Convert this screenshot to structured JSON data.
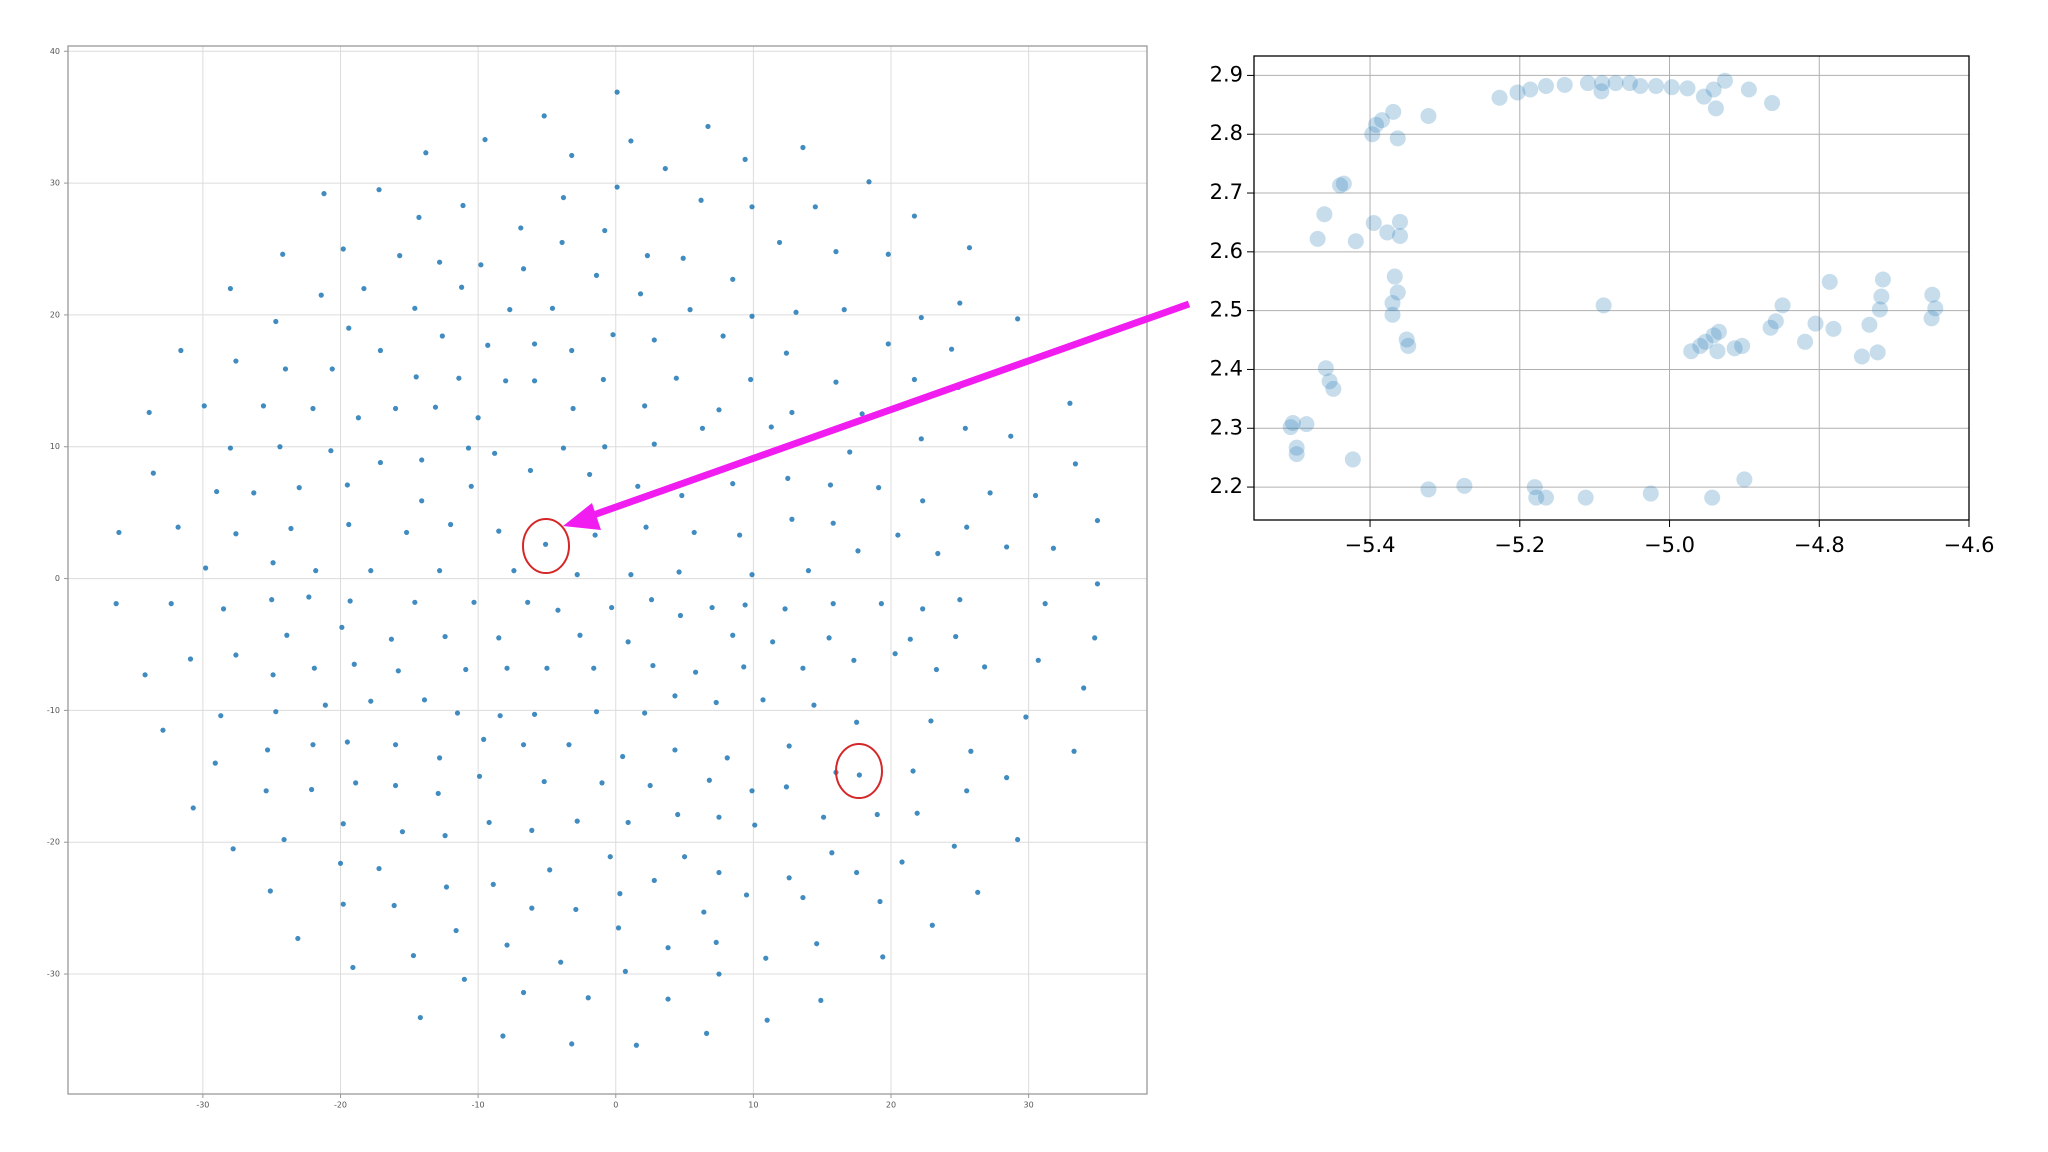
{
  "chart_data": [
    {
      "type": "scatter",
      "color": "#1f77b4",
      "alpha": 0.85,
      "grid": true,
      "xlim": [
        -39.8,
        38.6
      ],
      "ylim": [
        -39.1,
        40.4
      ],
      "xticks": [
        -30,
        -20,
        -10,
        0,
        10,
        20,
        30
      ],
      "yticks": [
        -30,
        -20,
        -10,
        0,
        10,
        20,
        30,
        40
      ],
      "x": [
        0.1,
        -5.2,
        6.7,
        -9.5,
        1.1,
        -13.8,
        -3.2,
        13.6,
        9.4,
        3.6,
        18.4,
        -21.2,
        -17.2,
        -11.1,
        0.1,
        9.9,
        6.2,
        -3.8,
        21.7,
        -14.3,
        14.5,
        -6.9,
        -0.8,
        -24.2,
        -19.8,
        -3.9,
        11.9,
        25.7,
        -15.7,
        2.3,
        4.9,
        16.0,
        19.8,
        -12.8,
        -9.8,
        -6.7,
        -28.0,
        -18.3,
        -1.4,
        8.5,
        -21.4,
        -11.2,
        1.8,
        25.0,
        -24.7,
        -14.6,
        -7.7,
        -4.6,
        5.4,
        9.9,
        13.1,
        16.6,
        22.2,
        29.2,
        -19.4,
        -12.6,
        -0.2,
        7.8,
        -31.6,
        -17.1,
        -9.3,
        -5.9,
        -3.2,
        2.8,
        12.4,
        19.8,
        -27.6,
        24.4,
        -20.6,
        -24.0,
        -14.5,
        -11.4,
        -8.0,
        -5.9,
        -0.9,
        4.4,
        9.8,
        16.0,
        21.7,
        24.9,
        33.0,
        -33.9,
        -29.9,
        -25.6,
        -22.0,
        -18.7,
        -16.0,
        -13.1,
        -10.0,
        -3.1,
        2.1,
        7.5,
        12.8,
        17.9,
        28.7,
        25.4,
        -33.6,
        -28.0,
        -24.4,
        -20.7,
        -17.1,
        -14.1,
        -10.7,
        -8.8,
        -3.8,
        -0.8,
        2.8,
        6.3,
        11.3,
        17.0,
        22.2,
        33.4,
        -29.0,
        -26.3,
        -23.0,
        -19.5,
        -14.1,
        -10.5,
        -6.2,
        -1.9,
        1.6,
        4.8,
        8.5,
        12.5,
        15.6,
        19.1,
        22.3,
        27.2,
        30.5,
        -36.1,
        -31.8,
        -27.6,
        -23.6,
        -19.4,
        -15.2,
        -12.0,
        -8.5,
        -5.1,
        -1.5,
        2.2,
        5.7,
        9.0,
        12.8,
        15.8,
        20.5,
        25.5,
        28.4,
        31.8,
        35.0,
        -29.8,
        -24.9,
        -21.8,
        -17.8,
        -12.8,
        -7.4,
        -2.8,
        1.1,
        4.6,
        9.9,
        14.0,
        17.6,
        23.4,
        35.0,
        -36.3,
        -32.3,
        -28.5,
        -25.0,
        -22.3,
        -19.3,
        -14.6,
        -10.3,
        -6.4,
        -4.2,
        -0.3,
        2.6,
        4.7,
        7.0,
        9.4,
        12.3,
        15.8,
        19.3,
        22.3,
        25.0,
        31.2,
        34.8,
        -23.9,
        -19.9,
        -16.3,
        -12.4,
        -8.5,
        -2.6,
        0.9,
        8.5,
        11.4,
        15.5,
        21.4,
        24.7,
        -34.2,
        -30.9,
        -27.6,
        -24.9,
        -21.9,
        -19.0,
        -15.8,
        -10.9,
        -7.9,
        -5.0,
        -1.6,
        2.7,
        5.8,
        9.3,
        13.6,
        17.3,
        20.3,
        23.3,
        26.8,
        30.7,
        34.0,
        -32.9,
        -28.7,
        -24.7,
        -21.1,
        -17.8,
        -13.9,
        -11.5,
        -8.4,
        -5.9,
        -1.4,
        2.1,
        4.3,
        7.3,
        10.7,
        14.4,
        17.5,
        22.9,
        29.8,
        -30.7,
        -29.1,
        -25.3,
        -22.0,
        -19.5,
        -16.0,
        -12.8,
        -9.6,
        -6.7,
        -3.4,
        0.5,
        4.3,
        8.1,
        12.6,
        17.7,
        21.6,
        25.8,
        33.3,
        -25.4,
        -22.1,
        -18.9,
        -16.0,
        -12.9,
        -9.9,
        -5.2,
        -1.0,
        2.5,
        6.8,
        9.9,
        12.4,
        16.0,
        25.5,
        28.4,
        -27.8,
        -24.1,
        -19.8,
        -15.5,
        -12.4,
        -9.2,
        -6.1,
        -2.8,
        0.9,
        4.5,
        7.5,
        10.1,
        15.1,
        19.0,
        21.9,
        29.2,
        24.6,
        -20.0,
        -17.2,
        -12.3,
        -8.9,
        -4.8,
        -0.4,
        2.8,
        5.0,
        7.5,
        9.5,
        12.6,
        15.7,
        17.5,
        20.8,
        26.3,
        -25.1,
        -19.8,
        -16.1,
        -6.1,
        -2.9,
        0.3,
        6.4,
        13.6,
        19.2,
        23.0,
        -23.1,
        -11.6,
        -7.9,
        0.2,
        3.8,
        7.3,
        10.9,
        14.6,
        19.4,
        -19.1,
        -14.7,
        -11.0,
        -4.0,
        0.7,
        7.5,
        -6.7,
        -2.0,
        3.8,
        14.9,
        -14.2,
        11.0,
        -8.2,
        6.6,
        -3.2,
        1.5
      ],
      "y": [
        36.9,
        35.1,
        34.3,
        33.3,
        33.2,
        32.3,
        32.1,
        32.7,
        31.8,
        31.1,
        30.1,
        29.2,
        29.5,
        28.3,
        29.7,
        28.2,
        28.7,
        28.9,
        27.5,
        27.4,
        28.2,
        26.6,
        26.4,
        24.6,
        25.0,
        25.5,
        25.5,
        25.1,
        24.5,
        24.5,
        24.3,
        24.8,
        24.6,
        24.0,
        23.8,
        23.5,
        22.0,
        22.0,
        23.0,
        22.7,
        21.5,
        22.1,
        21.6,
        20.9,
        19.5,
        20.5,
        20.4,
        20.5,
        20.4,
        19.9,
        20.2,
        20.4,
        19.8,
        19.7,
        19.0,
        18.4,
        18.5,
        18.4,
        17.3,
        17.3,
        17.7,
        17.8,
        17.3,
        18.1,
        17.1,
        17.8,
        16.5,
        17.4,
        15.9,
        15.9,
        15.3,
        15.2,
        15.0,
        15.0,
        15.1,
        15.2,
        15.1,
        14.9,
        15.1,
        14.5,
        13.3,
        12.6,
        13.1,
        13.1,
        12.9,
        12.2,
        12.9,
        13.0,
        12.2,
        12.9,
        13.1,
        12.8,
        12.6,
        12.5,
        10.8,
        11.4,
        8.0,
        9.9,
        10.0,
        9.7,
        8.8,
        9.0,
        9.9,
        9.5,
        9.9,
        10.0,
        10.2,
        11.4,
        11.5,
        9.6,
        10.6,
        8.7,
        6.6,
        6.5,
        6.9,
        7.1,
        5.9,
        7.0,
        8.2,
        7.9,
        7.0,
        6.3,
        7.2,
        7.6,
        7.1,
        6.9,
        5.9,
        6.5,
        6.3,
        3.5,
        3.9,
        3.4,
        3.8,
        4.1,
        3.5,
        4.1,
        3.6,
        2.6,
        3.3,
        3.9,
        3.5,
        3.3,
        4.5,
        4.2,
        3.3,
        3.9,
        2.4,
        2.3,
        4.4,
        0.8,
        1.2,
        0.6,
        0.6,
        0.6,
        0.6,
        0.3,
        0.3,
        0.5,
        0.3,
        0.6,
        2.1,
        1.9,
        -0.4,
        -1.9,
        -1.9,
        -2.3,
        -1.6,
        -1.4,
        -1.7,
        -1.8,
        -1.8,
        -1.8,
        -2.4,
        -2.2,
        -1.6,
        -2.8,
        -2.2,
        -2.0,
        -2.3,
        -1.9,
        -1.9,
        -2.3,
        -1.6,
        -1.9,
        -4.5,
        -4.3,
        -3.7,
        -4.6,
        -4.4,
        -4.5,
        -4.3,
        -4.8,
        -4.3,
        -4.8,
        -4.5,
        -4.6,
        -4.4,
        -7.3,
        -6.1,
        -5.8,
        -7.3,
        -6.8,
        -6.5,
        -7.0,
        -6.9,
        -6.8,
        -6.8,
        -6.8,
        -6.6,
        -7.1,
        -6.7,
        -6.8,
        -6.2,
        -5.7,
        -6.9,
        -6.7,
        -6.2,
        -8.3,
        -11.5,
        -10.4,
        -10.1,
        -9.6,
        -9.3,
        -9.2,
        -10.2,
        -10.4,
        -10.3,
        -10.1,
        -10.2,
        -8.9,
        -9.4,
        -9.2,
        -9.6,
        -10.9,
        -10.8,
        -10.5,
        -17.4,
        -14.0,
        -13.0,
        -12.6,
        -12.4,
        -12.6,
        -13.6,
        -12.2,
        -12.6,
        -12.6,
        -13.5,
        -13.0,
        -13.6,
        -12.7,
        -14.9,
        -14.6,
        -13.1,
        -13.1,
        -16.1,
        -16.0,
        -15.5,
        -15.7,
        -16.3,
        -15.0,
        -15.4,
        -15.5,
        -15.7,
        -15.3,
        -16.1,
        -15.8,
        -14.7,
        -16.1,
        -15.1,
        -20.5,
        -19.8,
        -18.6,
        -19.2,
        -19.5,
        -18.5,
        -19.1,
        -18.4,
        -18.5,
        -17.9,
        -18.1,
        -18.7,
        -18.1,
        -17.9,
        -17.8,
        -19.8,
        -20.3,
        -21.6,
        -22.0,
        -23.4,
        -23.2,
        -22.1,
        -21.1,
        -22.9,
        -21.1,
        -22.3,
        -24.0,
        -22.7,
        -20.8,
        -22.3,
        -21.5,
        -23.8,
        -23.7,
        -24.7,
        -24.8,
        -25.0,
        -25.1,
        -23.9,
        -25.3,
        -24.2,
        -24.5,
        -26.3,
        -27.3,
        -26.7,
        -27.8,
        -26.5,
        -28.0,
        -27.6,
        -28.8,
        -27.7,
        -28.7,
        -29.5,
        -28.6,
        -30.4,
        -29.1,
        -29.8,
        -30.0,
        -31.4,
        -31.8,
        -31.9,
        -32.0,
        -33.3,
        -33.5,
        -34.7,
        -34.5,
        -35.3,
        -35.4
      ]
    },
    {
      "type": "scatter",
      "color": "#1f77b4",
      "alpha": 0.25,
      "grid": true,
      "xlim": [
        -5.555,
        -4.6
      ],
      "ylim": [
        2.144,
        2.933
      ],
      "xticks": [
        {
          "value": -5.4,
          "label": "−5.4"
        },
        {
          "value": -5.2,
          "label": "−5.2"
        },
        {
          "value": -5.0,
          "label": "−5.0"
        },
        {
          "value": -4.8,
          "label": "−4.8"
        },
        {
          "value": -4.6,
          "label": "−4.6"
        }
      ],
      "yticks": [
        2.2,
        2.3,
        2.4,
        2.5,
        2.6,
        2.7,
        2.8,
        2.9
      ],
      "x": [
        -5.506,
        -5.503,
        -5.485,
        -5.498,
        -5.498,
        -5.423,
        -5.459,
        -5.454,
        -5.449,
        -5.47,
        -5.461,
        -5.44,
        -5.435,
        -5.419,
        -5.397,
        -5.392,
        -5.384,
        -5.369,
        -5.363,
        -5.395,
        -5.377,
        -5.36,
        -5.36,
        -5.367,
        -5.363,
        -5.37,
        -5.37,
        -5.351,
        -5.349,
        -5.322,
        -5.322,
        -5.274,
        -5.227,
        -5.203,
        -5.186,
        -5.165,
        -5.14,
        -5.109,
        -5.09,
        -5.091,
        -5.072,
        -5.053,
        -5.039,
        -5.018,
        -4.997,
        -4.976,
        -4.954,
        -4.938,
        -4.941,
        -4.926,
        -4.894,
        -4.863,
        -5.18,
        -5.178,
        -5.165,
        -5.112,
        -5.088,
        -5.025,
        -4.943,
        -4.9,
        -4.971,
        -4.959,
        -4.952,
        -4.941,
        -4.934,
        -4.936,
        -4.913,
        -4.903,
        -4.865,
        -4.858,
        -4.849,
        -4.819,
        -4.805,
        -4.786,
        -4.781,
        -4.743,
        -4.733,
        -4.722,
        -4.719,
        -4.717,
        -4.715,
        -4.65,
        -4.649,
        -4.645
      ],
      "y": [
        2.302,
        2.309,
        2.307,
        2.267,
        2.256,
        2.247,
        2.402,
        2.38,
        2.367,
        2.622,
        2.664,
        2.713,
        2.716,
        2.618,
        2.8,
        2.816,
        2.824,
        2.838,
        2.793,
        2.649,
        2.633,
        2.651,
        2.627,
        2.558,
        2.531,
        2.513,
        2.493,
        2.451,
        2.44,
        2.831,
        2.196,
        2.202,
        2.862,
        2.871,
        2.876,
        2.882,
        2.884,
        2.887,
        2.887,
        2.873,
        2.887,
        2.887,
        2.882,
        2.882,
        2.88,
        2.878,
        2.864,
        2.844,
        2.876,
        2.891,
        2.876,
        2.853,
        2.2,
        2.182,
        2.182,
        2.182,
        2.509,
        2.189,
        2.182,
        2.213,
        2.431,
        2.44,
        2.447,
        2.458,
        2.464,
        2.431,
        2.436,
        2.44,
        2.471,
        2.482,
        2.509,
        2.447,
        2.478,
        2.549,
        2.469,
        2.422,
        2.476,
        2.429,
        2.502,
        2.524,
        2.553,
        2.487,
        2.527,
        2.504
      ]
    }
  ]
}
